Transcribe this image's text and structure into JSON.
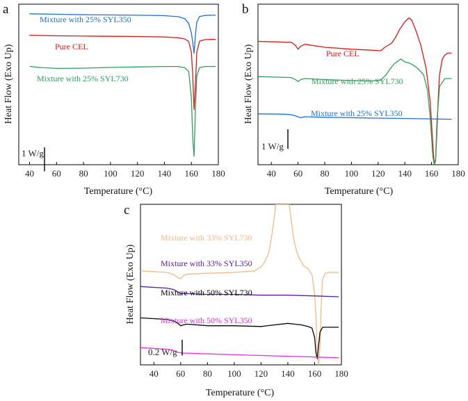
{
  "chart_data": [
    {
      "panel": "a",
      "type": "line",
      "xlabel": "Temperature (°C)",
      "ylabel": "Heat Flow (Exo Up)",
      "xlim": [
        32,
        180
      ],
      "xticks": [
        40,
        60,
        80,
        100,
        120,
        140,
        160,
        180
      ],
      "scale_bar": {
        "label": "1 W/g",
        "value": 1
      },
      "ylim": [
        -6.3,
        0.4
      ],
      "series": [
        {
          "name": "Mixture with 25% SYL350",
          "color": "#1a6fdc",
          "x": [
            40,
            60,
            80,
            100,
            120,
            140,
            150,
            155,
            158,
            160,
            161,
            162,
            163,
            164,
            166,
            170,
            175,
            178
          ],
          "y": [
            0.0,
            -0.02,
            -0.04,
            -0.05,
            -0.06,
            -0.08,
            -0.12,
            -0.2,
            -0.4,
            -0.8,
            -1.2,
            -1.65,
            -0.9,
            -0.35,
            -0.12,
            -0.07,
            -0.06,
            -0.06
          ]
        },
        {
          "name": "Pure CEL",
          "color": "#e01515",
          "x": [
            40,
            60,
            80,
            100,
            120,
            140,
            150,
            155,
            158,
            160,
            161,
            162,
            163,
            164,
            166,
            170,
            175,
            178
          ],
          "y": [
            -0.9,
            -0.92,
            -0.93,
            -0.94,
            -0.95,
            -0.97,
            -1.0,
            -1.05,
            -1.15,
            -1.6,
            -2.6,
            -4.0,
            -3.0,
            -1.6,
            -1.15,
            -1.08,
            -1.07,
            -1.07
          ]
        },
        {
          "name": "Mixture with 25% SYL730",
          "color": "#2ca05a",
          "x": [
            40,
            50,
            60,
            80,
            100,
            120,
            140,
            150,
            155,
            158,
            160,
            161,
            162,
            163,
            164,
            166,
            170,
            175,
            178
          ],
          "y": [
            -2.2,
            -2.25,
            -2.28,
            -2.27,
            -2.24,
            -2.22,
            -2.2,
            -2.2,
            -2.25,
            -2.4,
            -3.5,
            -5.2,
            -5.95,
            -4.0,
            -2.6,
            -2.25,
            -2.2,
            -2.2,
            -2.2
          ]
        }
      ]
    },
    {
      "panel": "b",
      "type": "line",
      "xlabel": "Temperature (°C)",
      "ylabel": "Heat Flow (Exo Up)",
      "xlim": [
        30,
        180
      ],
      "xticks": [
        40,
        60,
        80,
        100,
        120,
        140,
        160,
        180
      ],
      "scale_bar": {
        "label": "1 W/g",
        "value": 1
      },
      "ylim": [
        -7.2,
        1.0
      ],
      "series": [
        {
          "name": "Pure CEL",
          "color": "#e01515",
          "x": [
            30,
            55,
            58,
            60,
            62,
            65,
            80,
            100,
            115,
            122,
            125,
            130,
            133,
            136,
            140,
            143,
            145,
            148,
            152,
            156,
            159,
            161,
            162,
            163,
            164,
            165,
            166,
            168,
            170,
            172,
            175
          ],
          "y": [
            -0.9,
            -0.95,
            -1.1,
            -1.3,
            -1.15,
            -1.05,
            -1.2,
            -1.3,
            -1.35,
            -1.38,
            -1.2,
            -1.0,
            -0.7,
            -0.3,
            0.1,
            0.3,
            0.2,
            -0.3,
            -1.1,
            -2.3,
            -4.0,
            -6.2,
            -7.2,
            -7.0,
            -5.5,
            -3.8,
            -2.6,
            -1.8,
            -1.6,
            -1.5,
            -1.5
          ]
        },
        {
          "name": "Mixture with 25% SYL730",
          "color": "#2ca05a",
          "x": [
            30,
            55,
            58,
            60,
            62,
            65,
            80,
            100,
            115,
            122,
            126,
            129,
            132,
            135,
            137,
            140,
            143,
            146,
            150,
            154,
            157,
            159,
            161,
            162,
            163,
            164,
            166,
            170,
            175
          ],
          "y": [
            -2.7,
            -2.75,
            -2.85,
            -2.95,
            -2.85,
            -2.8,
            -2.85,
            -2.9,
            -2.92,
            -2.88,
            -2.6,
            -2.3,
            -2.05,
            -1.9,
            -1.8,
            -1.95,
            -2.0,
            -2.1,
            -2.3,
            -2.6,
            -3.4,
            -4.8,
            -6.8,
            -7.2,
            -6.9,
            -5.0,
            -3.2,
            -2.8,
            -2.8
          ]
        },
        {
          "name": "Mixture with 25% SYL350",
          "color": "#1a6fdc",
          "x": [
            30,
            50,
            55,
            58,
            62,
            65,
            80,
            100,
            120,
            140,
            160,
            175
          ],
          "y": [
            -4.6,
            -4.62,
            -4.65,
            -4.7,
            -4.8,
            -4.75,
            -4.78,
            -4.8,
            -4.82,
            -4.84,
            -4.86,
            -4.88
          ]
        }
      ]
    },
    {
      "panel": "c",
      "type": "line",
      "xlabel": "Temperature (°C)",
      "ylabel": "Heat Flow (Exo Up)",
      "xlim": [
        30,
        180
      ],
      "xticks": [
        40,
        60,
        80,
        100,
        120,
        140,
        160,
        180
      ],
      "scale_bar": {
        "label": "0.2 W/g",
        "value": 0.2
      },
      "ylim": [
        -1.2,
        0.85
      ],
      "series": [
        {
          "name": "Mixture with 33% SYL730",
          "color": "#f5b887",
          "x": [
            30,
            50,
            55,
            58,
            60,
            62,
            65,
            80,
            100,
            115,
            120,
            123,
            126,
            128,
            130,
            131,
            141,
            142,
            144,
            146,
            148,
            150,
            152,
            155,
            158,
            160,
            161,
            162,
            163,
            164,
            165,
            166,
            168,
            170,
            175,
            178
          ],
          "y": [
            0.0,
            -0.02,
            -0.05,
            -0.09,
            -0.1,
            -0.06,
            -0.04,
            -0.03,
            -0.02,
            0.0,
            0.05,
            0.12,
            0.25,
            0.45,
            0.7,
            0.85,
            0.85,
            0.72,
            0.45,
            0.28,
            0.18,
            0.12,
            0.06,
            0.03,
            -0.05,
            -0.3,
            -0.6,
            -1.05,
            -1.2,
            -0.95,
            -0.4,
            -0.1,
            -0.03,
            -0.02,
            -0.02,
            -0.02
          ]
        },
        {
          "name": "Mixture with 33% SYL350",
          "color": "#5b1aa6",
          "x": [
            30,
            50,
            55,
            58,
            60,
            62,
            65,
            80,
            100,
            120,
            140,
            160,
            178
          ],
          "y": [
            -0.2,
            -0.22,
            -0.24,
            -0.27,
            -0.29,
            -0.29,
            -0.29,
            -0.3,
            -0.3,
            -0.31,
            -0.31,
            -0.32,
            -0.33
          ]
        },
        {
          "name": "Mixture with 50% SYL730",
          "color": "#000000",
          "x": [
            30,
            50,
            55,
            58,
            60,
            62,
            65,
            80,
            100,
            120,
            130,
            140,
            145,
            150,
            155,
            158,
            160,
            161,
            162,
            163,
            164,
            166,
            170,
            178
          ],
          "y": [
            -0.6,
            -0.62,
            -0.64,
            -0.67,
            -0.7,
            -0.69,
            -0.68,
            -0.7,
            -0.7,
            -0.71,
            -0.69,
            -0.67,
            -0.68,
            -0.69,
            -0.71,
            -0.73,
            -0.85,
            -1.05,
            -1.12,
            -0.95,
            -0.78,
            -0.72,
            -0.72,
            -0.72
          ]
        },
        {
          "name": "Mixture with 50% SYL350",
          "color": "#ea2ce6",
          "x": [
            30,
            50,
            55,
            58,
            62,
            65,
            80,
            100,
            120,
            140,
            160,
            178
          ],
          "y": [
            -0.98,
            -1.0,
            -1.02,
            -1.04,
            -1.05,
            -1.05,
            -1.06,
            -1.07,
            -1.08,
            -1.09,
            -1.1,
            -1.11
          ]
        }
      ]
    }
  ]
}
